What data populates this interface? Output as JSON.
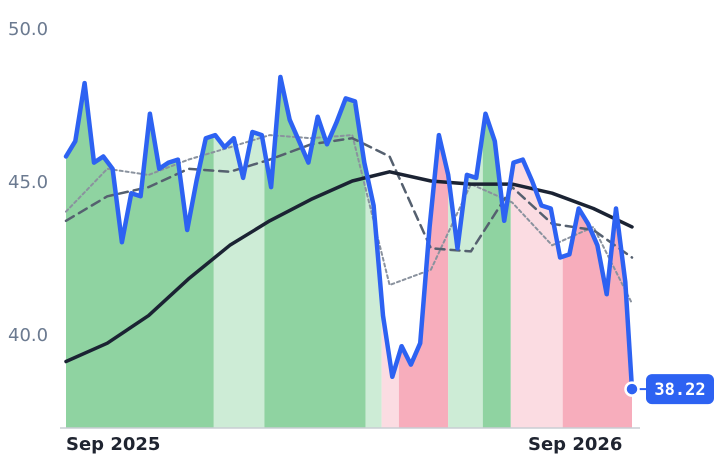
{
  "chart_data": {
    "type": "line",
    "title": "",
    "xlabel": "",
    "ylabel": "",
    "ylim": [
      36.9,
      50.0
    ],
    "xlim": [
      "2025-07-23",
      "2026-09-21"
    ],
    "grid": false,
    "legend": "none",
    "y_ticks": [
      "40.0",
      "45.0",
      "50.0"
    ],
    "x_ticks": [
      {
        "label": "Sep 2025",
        "date": "2025-09-01"
      },
      {
        "label": "Sep 2026",
        "date": "2026-09-01"
      }
    ],
    "last_value_label": "38.22",
    "colors": {
      "price": "#2d62f2",
      "ma_long": "#1b2333",
      "ma_mid": "#55606f",
      "ma_short": "#8a929e",
      "up_strong": "#8fd3a1",
      "up_light": "#cdecd6",
      "down_strong": "#f7adbc",
      "down_light": "#fbdce2",
      "axis": "#c9cdd3",
      "badge": "#2d62f2"
    },
    "regimes": [
      {
        "start": "2025-07-23",
        "end": "2025-11-11",
        "class": "up_strong"
      },
      {
        "start": "2025-11-11",
        "end": "2025-12-19",
        "class": "up_light"
      },
      {
        "start": "2025-12-19",
        "end": "2026-03-05",
        "class": "up_strong"
      },
      {
        "start": "2026-03-05",
        "end": "2026-03-17",
        "class": "up_light"
      },
      {
        "start": "2026-03-17",
        "end": "2026-03-30",
        "class": "down_light"
      },
      {
        "start": "2026-03-30",
        "end": "2026-05-06",
        "class": "down_strong"
      },
      {
        "start": "2026-05-06",
        "end": "2026-06-01",
        "class": "up_light"
      },
      {
        "start": "2026-06-01",
        "end": "2026-06-22",
        "class": "up_strong"
      },
      {
        "start": "2026-06-22",
        "end": "2026-07-31",
        "class": "down_light"
      },
      {
        "start": "2026-07-31",
        "end": "2026-09-21",
        "class": "down_strong"
      }
    ],
    "series": [
      {
        "key": "price",
        "x": [
          "2025-07-23",
          "2025-07-30",
          "2025-08-06",
          "2025-08-13",
          "2025-08-20",
          "2025-08-27",
          "2025-09-03",
          "2025-09-10",
          "2025-09-17",
          "2025-09-24",
          "2025-10-01",
          "2025-10-08",
          "2025-10-15",
          "2025-10-22",
          "2025-10-29",
          "2025-11-05",
          "2025-11-12",
          "2025-11-19",
          "2025-11-26",
          "2025-12-03",
          "2025-12-10",
          "2025-12-17",
          "2025-12-24",
          "2025-12-31",
          "2026-01-07",
          "2026-01-14",
          "2026-01-21",
          "2026-01-28",
          "2026-02-04",
          "2026-02-11",
          "2026-02-18",
          "2026-02-25",
          "2026-03-04",
          "2026-03-11",
          "2026-03-18",
          "2026-03-25",
          "2026-04-01",
          "2026-04-08",
          "2026-04-15",
          "2026-04-22",
          "2026-04-29",
          "2026-05-06",
          "2026-05-13",
          "2026-05-20",
          "2026-05-27",
          "2026-06-03",
          "2026-06-10",
          "2026-06-17",
          "2026-06-24",
          "2026-07-01",
          "2026-07-08",
          "2026-07-15",
          "2026-07-22",
          "2026-07-29",
          "2026-08-05",
          "2026-08-12",
          "2026-08-19",
          "2026-08-26",
          "2026-09-02",
          "2026-09-09",
          "2026-09-16",
          "2026-09-21"
        ],
        "values": [
          45.8,
          46.3,
          48.2,
          45.6,
          45.8,
          45.4,
          43.0,
          44.6,
          44.5,
          47.2,
          45.4,
          45.6,
          45.7,
          43.4,
          45.0,
          46.4,
          46.5,
          46.1,
          46.4,
          45.1,
          46.6,
          46.5,
          44.8,
          48.4,
          47.0,
          46.3,
          45.6,
          47.1,
          46.2,
          46.9,
          47.7,
          47.6,
          45.6,
          44.2,
          40.6,
          38.6,
          39.6,
          39.0,
          39.7,
          43.5,
          46.5,
          45.2,
          42.8,
          45.2,
          45.1,
          47.2,
          46.3,
          43.7,
          45.6,
          45.7,
          45.0,
          44.2,
          44.1,
          42.5,
          42.6,
          44.1,
          43.6,
          42.9,
          41.3,
          44.1,
          41.7,
          38.2
        ]
      },
      {
        "key": "ma_long",
        "x": [
          "2025-07-23",
          "2025-08-23",
          "2025-09-23",
          "2025-10-23",
          "2025-11-23",
          "2025-12-23",
          "2026-01-23",
          "2026-02-23",
          "2026-03-23",
          "2026-04-23",
          "2026-05-23",
          "2026-06-23",
          "2026-07-23",
          "2026-08-23",
          "2026-09-21"
        ],
        "values": [
          39.1,
          39.7,
          40.6,
          41.8,
          42.9,
          43.7,
          44.4,
          45.0,
          45.3,
          45.0,
          44.9,
          44.9,
          44.6,
          44.1,
          43.5
        ]
      },
      {
        "key": "ma_mid",
        "x": [
          "2025-07-23",
          "2025-08-23",
          "2025-09-23",
          "2025-10-23",
          "2025-11-23",
          "2025-12-23",
          "2026-01-23",
          "2026-02-23",
          "2026-03-23",
          "2026-04-23",
          "2026-05-23",
          "2026-06-23",
          "2026-07-23",
          "2026-08-23",
          "2026-09-21"
        ],
        "values": [
          43.7,
          44.5,
          44.8,
          45.4,
          45.3,
          45.7,
          46.2,
          46.4,
          45.8,
          42.8,
          42.7,
          44.8,
          43.6,
          43.4,
          42.5
        ]
      },
      {
        "key": "ma_short",
        "x": [
          "2025-07-23",
          "2025-08-23",
          "2025-09-23",
          "2025-10-23",
          "2025-11-23",
          "2025-12-23",
          "2026-01-23",
          "2026-02-23",
          "2026-03-23",
          "2026-04-23",
          "2026-05-23",
          "2026-06-23",
          "2026-07-23",
          "2026-08-23",
          "2026-09-21"
        ],
        "values": [
          44.0,
          45.4,
          45.2,
          45.7,
          46.1,
          46.5,
          46.4,
          46.5,
          41.6,
          42.1,
          44.9,
          44.3,
          42.9,
          43.5,
          41.0
        ]
      }
    ]
  }
}
